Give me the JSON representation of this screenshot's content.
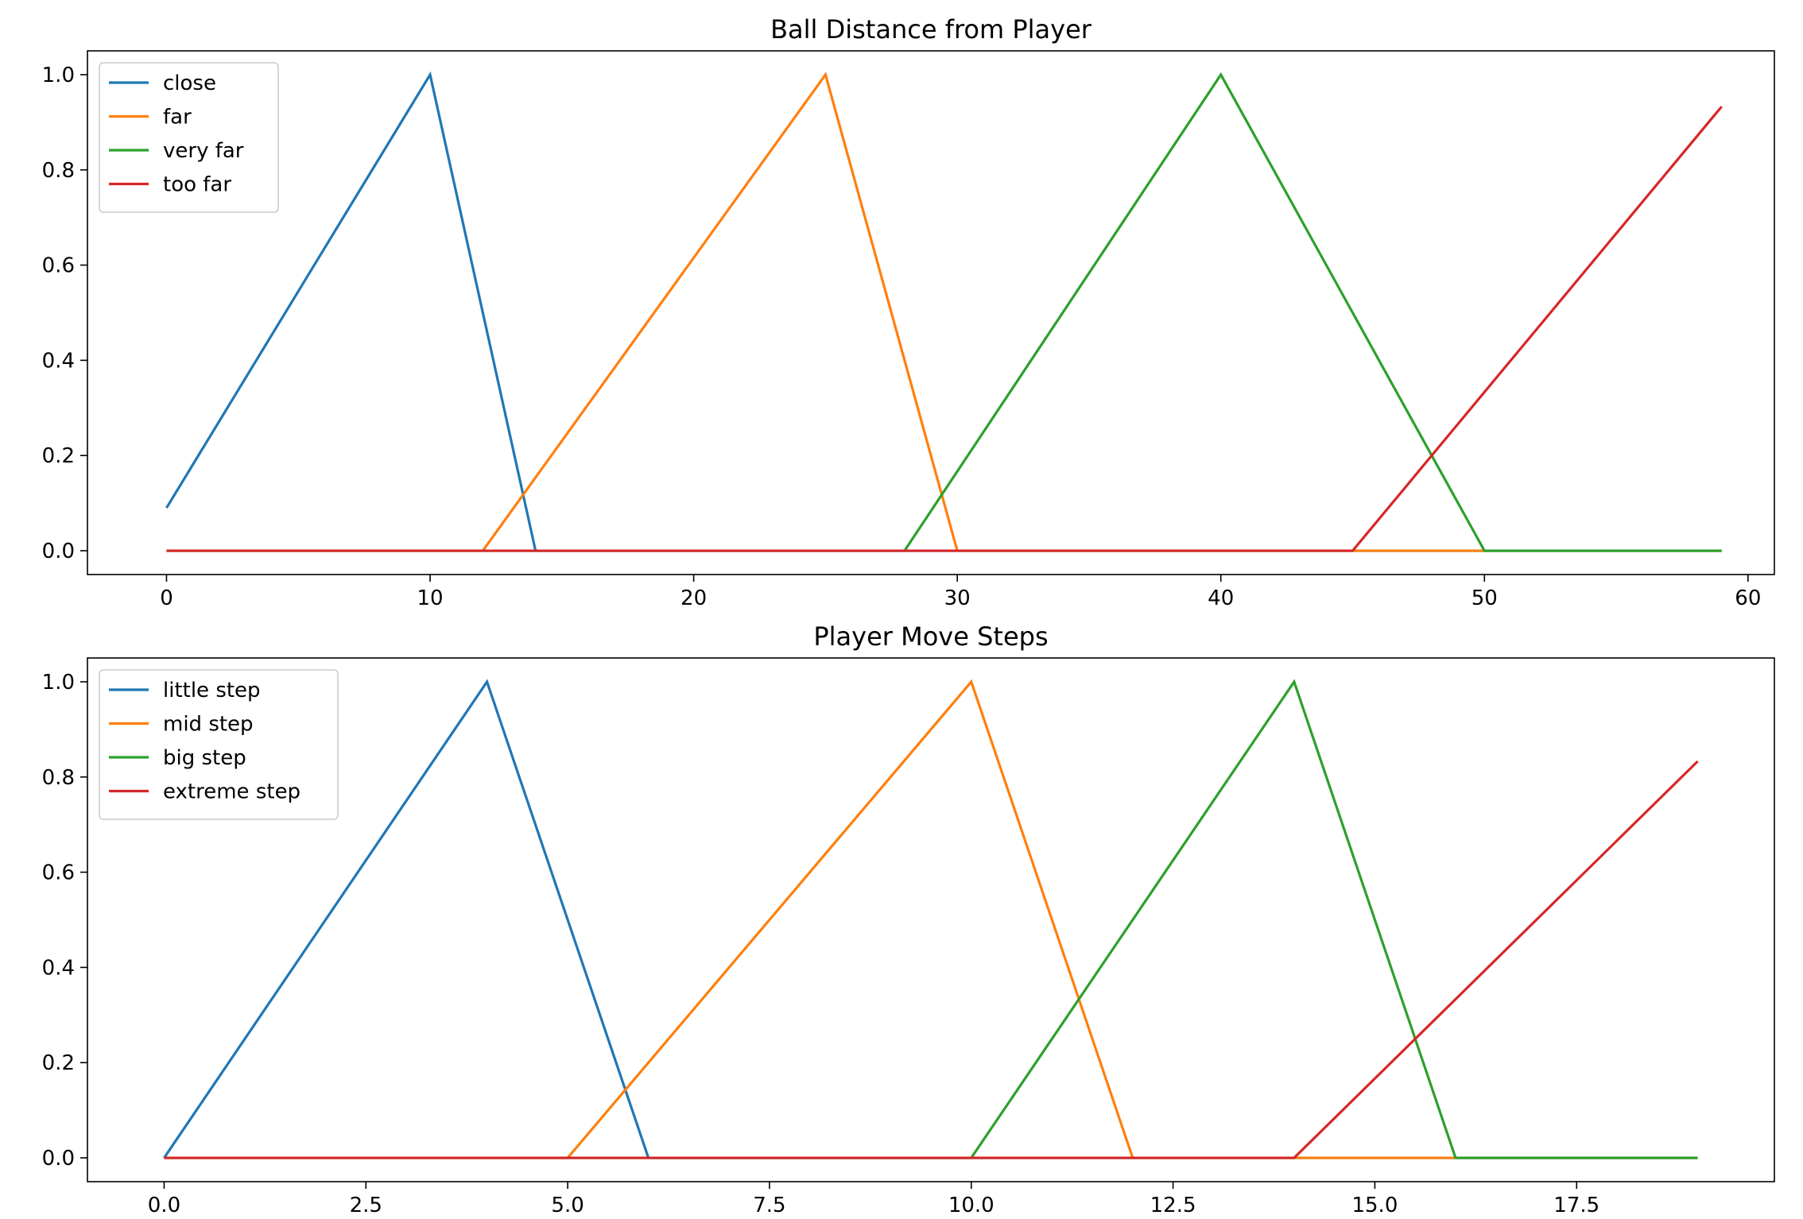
{
  "chart_data": [
    {
      "type": "line",
      "title": "Ball Distance from Player",
      "xlabel": "",
      "ylabel": "",
      "xlim": [
        -3,
        61
      ],
      "ylim": [
        -0.05,
        1.05
      ],
      "xticks": [
        0,
        10,
        20,
        30,
        40,
        50,
        60
      ],
      "xtick_labels": [
        "0",
        "10",
        "20",
        "30",
        "40",
        "50",
        "60"
      ],
      "yticks": [
        0.0,
        0.2,
        0.4,
        0.6,
        0.8,
        1.0
      ],
      "ytick_labels": [
        "0.0",
        "0.2",
        "0.4",
        "0.6",
        "0.8",
        "1.0"
      ],
      "grid": false,
      "legend": "upper-left",
      "series": [
        {
          "name": "close",
          "color": "#1f77b4",
          "x": [
            0,
            10,
            14,
            59
          ],
          "y": [
            0.09,
            1.0,
            0.0,
            0.0
          ]
        },
        {
          "name": "far",
          "color": "#ff7f0e",
          "x": [
            0,
            12,
            25,
            30,
            59
          ],
          "y": [
            0.0,
            0.0,
            1.0,
            0.0,
            0.0
          ]
        },
        {
          "name": "very far",
          "color": "#2ca02c",
          "x": [
            0,
            28,
            40,
            50,
            59
          ],
          "y": [
            0.0,
            0.0,
            1.0,
            0.0,
            0.0
          ]
        },
        {
          "name": "too far",
          "color": "#d62728",
          "x": [
            0,
            45,
            59
          ],
          "y": [
            0.0,
            0.0,
            0.933
          ]
        }
      ]
    },
    {
      "type": "line",
      "title": "Player Move Steps",
      "xlabel": "",
      "ylabel": "",
      "xlim": [
        -0.95,
        19.95
      ],
      "ylim": [
        -0.05,
        1.05
      ],
      "xticks": [
        0.0,
        2.5,
        5.0,
        7.5,
        10.0,
        12.5,
        15.0,
        17.5
      ],
      "xtick_labels": [
        "0.0",
        "2.5",
        "5.0",
        "7.5",
        "10.0",
        "12.5",
        "15.0",
        "17.5"
      ],
      "yticks": [
        0.0,
        0.2,
        0.4,
        0.6,
        0.8,
        1.0
      ],
      "ytick_labels": [
        "0.0",
        "0.2",
        "0.4",
        "0.6",
        "0.8",
        "1.0"
      ],
      "grid": false,
      "legend": "upper-left",
      "series": [
        {
          "name": "little step",
          "color": "#1f77b4",
          "x": [
            0,
            4,
            6,
            19
          ],
          "y": [
            0.0,
            1.0,
            0.0,
            0.0
          ]
        },
        {
          "name": "mid step",
          "color": "#ff7f0e",
          "x": [
            0,
            5,
            10,
            12,
            19
          ],
          "y": [
            0.0,
            0.0,
            1.0,
            0.0,
            0.0
          ]
        },
        {
          "name": "big step",
          "color": "#2ca02c",
          "x": [
            0,
            10,
            14,
            16,
            19
          ],
          "y": [
            0.0,
            0.0,
            1.0,
            0.0,
            0.0
          ]
        },
        {
          "name": "extreme step",
          "color": "#d62728",
          "x": [
            0,
            14,
            19
          ],
          "y": [
            0.0,
            0.0,
            0.833
          ]
        }
      ]
    }
  ]
}
